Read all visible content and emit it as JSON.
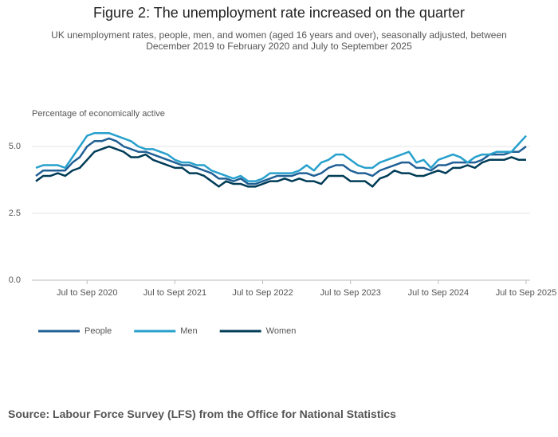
{
  "chart_data": {
    "type": "line",
    "title": "Figure 2: The unemployment rate increased on the quarter",
    "subtitle": "UK unemployment rates, people, men, and women (aged 16 years and over), seasonally adjusted, between December 2019 to February 2020 and July to September 2025",
    "y_label": "Percentage of economically active",
    "source": "Source: Labour Force Survey (LFS) from the Office for National Statistics",
    "categories": [
      null,
      null,
      null,
      null,
      null,
      null,
      null,
      "Jul to Sep 2020",
      null,
      null,
      null,
      null,
      null,
      null,
      null,
      null,
      null,
      null,
      null,
      "Jul to Sept 2021",
      null,
      null,
      null,
      null,
      null,
      null,
      null,
      null,
      null,
      null,
      null,
      "Jul to Sep 2022",
      null,
      null,
      null,
      null,
      null,
      null,
      null,
      null,
      null,
      null,
      null,
      "Jul to Sep 2023",
      null,
      null,
      null,
      null,
      null,
      null,
      null,
      null,
      null,
      null,
      null,
      "Jul to Sep 2024",
      null,
      null,
      null,
      null,
      null,
      null,
      null,
      null,
      null,
      null,
      null,
      "Jul to Sep 2025"
    ],
    "series": [
      {
        "name": "People",
        "color": "#206095",
        "values": [
          3.9,
          4.1,
          4.1,
          4.1,
          4.1,
          4.4,
          4.6,
          5.0,
          5.2,
          5.2,
          5.3,
          5.2,
          5.0,
          4.9,
          4.8,
          4.8,
          4.7,
          4.6,
          4.5,
          4.4,
          4.3,
          4.3,
          4.2,
          4.1,
          4.0,
          3.8,
          3.8,
          3.7,
          3.8,
          3.6,
          3.6,
          3.7,
          3.8,
          3.9,
          3.9,
          3.9,
          4.0,
          4.0,
          3.9,
          4.0,
          4.2,
          4.3,
          4.3,
          4.1,
          4.0,
          4.0,
          3.9,
          4.1,
          4.2,
          4.3,
          4.4,
          4.4,
          4.2,
          4.2,
          4.1,
          4.3,
          4.3,
          4.4,
          4.4,
          4.4,
          4.4,
          4.5,
          4.7,
          4.7,
          4.7,
          4.8,
          4.8,
          5.0
        ]
      },
      {
        "name": "Men",
        "color": "#27a0cc",
        "values": [
          4.2,
          4.3,
          4.3,
          4.3,
          4.2,
          4.6,
          5.0,
          5.4,
          5.5,
          5.5,
          5.5,
          5.4,
          5.3,
          5.2,
          5.0,
          4.9,
          4.9,
          4.8,
          4.7,
          4.5,
          4.4,
          4.4,
          4.3,
          4.3,
          4.1,
          4.0,
          3.9,
          3.8,
          3.9,
          3.7,
          3.7,
          3.8,
          4.0,
          4.0,
          4.0,
          4.0,
          4.1,
          4.3,
          4.1,
          4.4,
          4.5,
          4.7,
          4.7,
          4.5,
          4.3,
          4.2,
          4.2,
          4.4,
          4.5,
          4.6,
          4.7,
          4.8,
          4.4,
          4.5,
          4.2,
          4.5,
          4.6,
          4.7,
          4.6,
          4.4,
          4.6,
          4.7,
          4.7,
          4.8,
          4.8,
          4.8,
          5.1,
          5.4
        ]
      },
      {
        "name": "Women",
        "color": "#003c57",
        "values": [
          3.7,
          3.9,
          3.9,
          4.0,
          3.9,
          4.1,
          4.2,
          4.5,
          4.8,
          4.9,
          5.0,
          4.9,
          4.8,
          4.6,
          4.6,
          4.7,
          4.5,
          4.4,
          4.3,
          4.2,
          4.2,
          4.0,
          4.0,
          3.9,
          3.7,
          3.5,
          3.7,
          3.6,
          3.6,
          3.5,
          3.5,
          3.6,
          3.7,
          3.7,
          3.8,
          3.7,
          3.8,
          3.7,
          3.7,
          3.6,
          3.9,
          3.9,
          3.9,
          3.7,
          3.7,
          3.7,
          3.5,
          3.8,
          3.9,
          4.1,
          4.0,
          4.0,
          3.9,
          3.9,
          4.0,
          4.1,
          4.0,
          4.2,
          4.2,
          4.3,
          4.2,
          4.4,
          4.5,
          4.5,
          4.5,
          4.6,
          4.5,
          4.5
        ]
      }
    ],
    "ylim": [
      0,
      5.7
    ],
    "yticks": [
      {
        "value": 0,
        "label": "0.0"
      },
      {
        "value": 2.5,
        "label": "2.5"
      },
      {
        "value": 5,
        "label": "5.0"
      }
    ],
    "grid": true,
    "legend": "bottom-left"
  }
}
